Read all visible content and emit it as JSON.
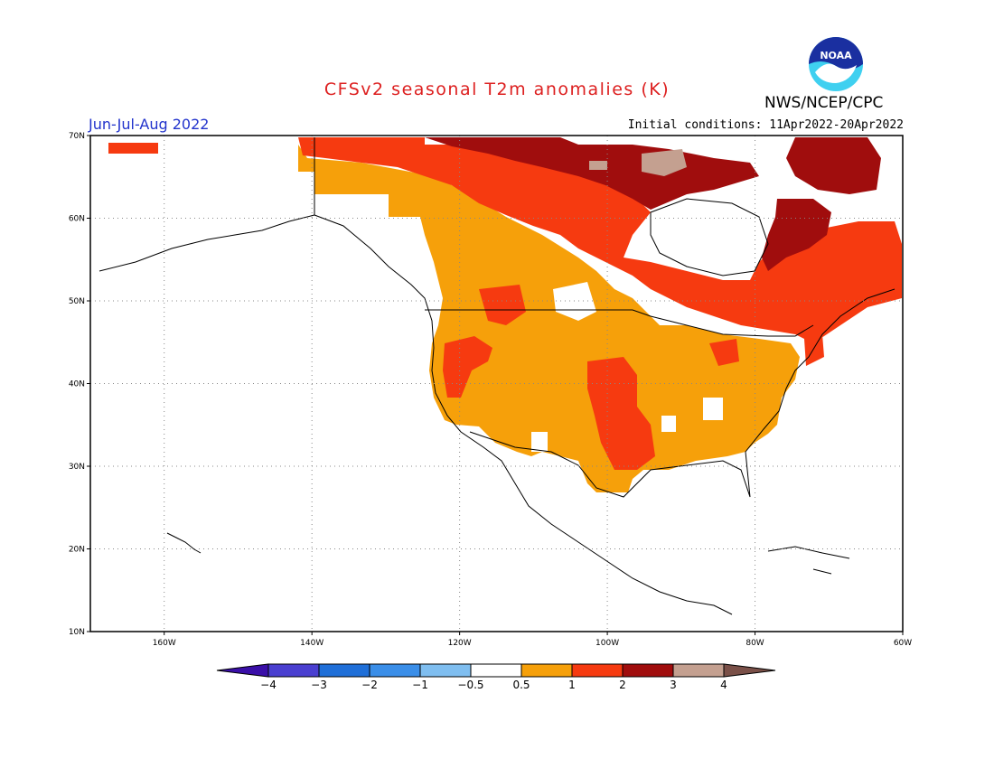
{
  "title": "CFSv2 seasonal T2m anomalies (K)",
  "season": "Jun-Jul-Aug 2022",
  "initial_conditions": "Initial conditions: 11Apr2022-20Apr2022",
  "agency": "NWS/NCEP/CPC",
  "logo_text": "NOAA",
  "map": {
    "lon_range": [
      -170,
      -60
    ],
    "lat_range": [
      10,
      70
    ],
    "lat_ticks": [
      {
        "label": "70N",
        "lat": 70
      },
      {
        "label": "60N",
        "lat": 60
      },
      {
        "label": "50N",
        "lat": 50
      },
      {
        "label": "40N",
        "lat": 40
      },
      {
        "label": "30N",
        "lat": 30
      },
      {
        "label": "20N",
        "lat": 20
      },
      {
        "label": "10N",
        "lat": 10
      }
    ],
    "lon_ticks": [
      {
        "label": "160W",
        "lon": -160
      },
      {
        "label": "140W",
        "lon": -140
      },
      {
        "label": "120W",
        "lon": -120
      },
      {
        "label": "100W",
        "lon": -100
      },
      {
        "label": "80W",
        "lon": -80
      },
      {
        "label": "60W",
        "lon": -60
      }
    ]
  },
  "colorbar": {
    "labels": [
      "-4",
      "-3",
      "-2",
      "-1",
      "-0.5",
      "0.5",
      "1",
      "2",
      "3",
      "4"
    ],
    "colors": [
      "#3a0fa8",
      "#4a3fd0",
      "#1f6fd8",
      "#3a8ee8",
      "#7fbef0",
      "#ffffff",
      "#f6a00a",
      "#f63a10",
      "#a00d0d",
      "#c4a090",
      "#7a5048"
    ]
  },
  "colors": {
    "anom_05_1": "#f6a00a",
    "anom_1_2": "#f63a10",
    "anom_2_3": "#a00d0d",
    "anom_3_4": "#c4a090"
  }
}
